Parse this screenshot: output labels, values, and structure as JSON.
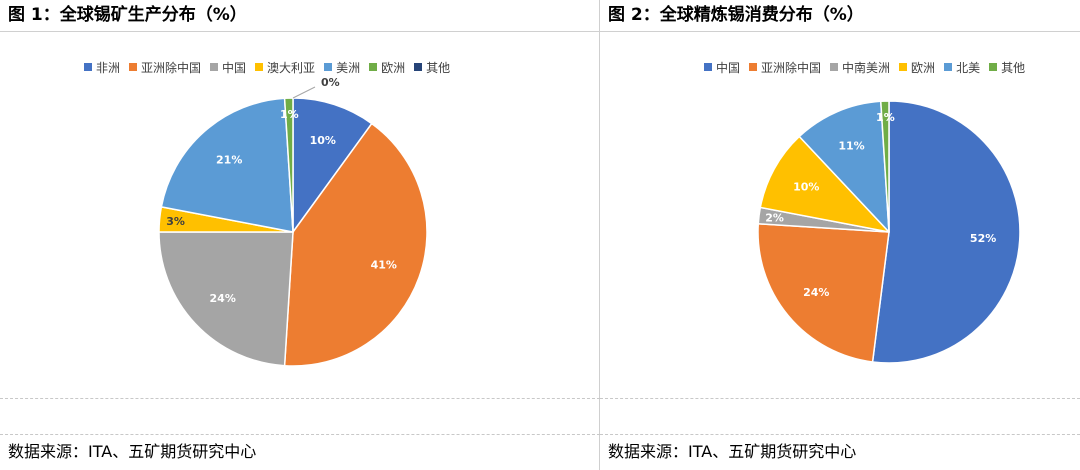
{
  "chart_data": [
    {
      "type": "pie",
      "title": "图 1：全球锡矿生产分布（%）",
      "source": "数据来源：ITA、五矿期货研究中心",
      "legend_position": "top",
      "slices": [
        {
          "name": "非洲",
          "value": 10,
          "label": "10%",
          "color": "#4472C4"
        },
        {
          "name": "亚洲除中国",
          "value": 41,
          "label": "41%",
          "color": "#ED7D31"
        },
        {
          "name": "中国",
          "value": 24,
          "label": "24%",
          "color": "#A5A5A5"
        },
        {
          "name": "澳大利亚",
          "value": 3,
          "label": "3%",
          "color": "#FFC000"
        },
        {
          "name": "美洲",
          "value": 21,
          "label": "21%",
          "color": "#5B9BD5"
        },
        {
          "name": "欧洲",
          "value": 1,
          "label": "1%",
          "color": "#70AD47"
        },
        {
          "name": "其他",
          "value": 0,
          "label": "0%",
          "color": "#264478"
        }
      ]
    },
    {
      "type": "pie",
      "title": "图 2：全球精炼锡消费分布（%）",
      "source": "数据来源：ITA、五矿期货研究中心",
      "legend_position": "top",
      "slices": [
        {
          "name": "中国",
          "value": 52,
          "label": "52%",
          "color": "#4472C4"
        },
        {
          "name": "亚洲除中国",
          "value": 24,
          "label": "24%",
          "color": "#ED7D31"
        },
        {
          "name": "中南美洲",
          "value": 2,
          "label": "2%",
          "color": "#A5A5A5"
        },
        {
          "name": "欧洲",
          "value": 10,
          "label": "10%",
          "color": "#FFC000"
        },
        {
          "name": "北美",
          "value": 11,
          "label": "11%",
          "color": "#5B9BD5"
        },
        {
          "name": "其他",
          "value": 1,
          "label": "1%",
          "color": "#70AD47"
        }
      ]
    }
  ]
}
